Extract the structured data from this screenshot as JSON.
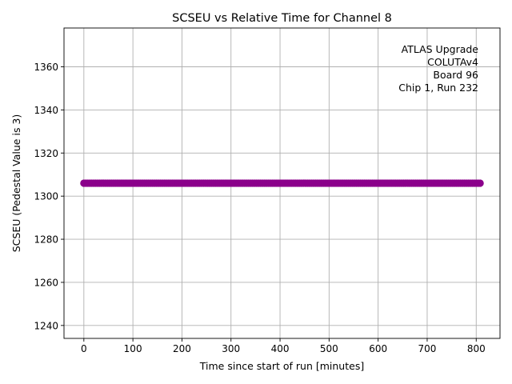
{
  "chart_data": {
    "type": "scatter",
    "title": "SCSEU vs Relative Time for Channel 8",
    "xlabel": "Time since start of run [minutes]",
    "ylabel": "SCSEU (Pedestal Value is 3)",
    "xlim": [
      -40.5,
      848.5
    ],
    "ylim": [
      1234,
      1378
    ],
    "xticks": [
      0,
      100,
      200,
      300,
      400,
      500,
      600,
      700,
      800
    ],
    "yticks": [
      1240,
      1260,
      1280,
      1300,
      1320,
      1340,
      1360
    ],
    "grid": true,
    "marker_color": "#8b008b",
    "series": [
      {
        "x_start": 0,
        "x_end": 808,
        "x_step": 4,
        "y_constant": 1306
      }
    ],
    "annotation_lines": [
      "ATLAS Upgrade",
      "COLUTAv4",
      "Board 96",
      "Chip 1, Run 232"
    ],
    "annotation_position": "top-right"
  }
}
